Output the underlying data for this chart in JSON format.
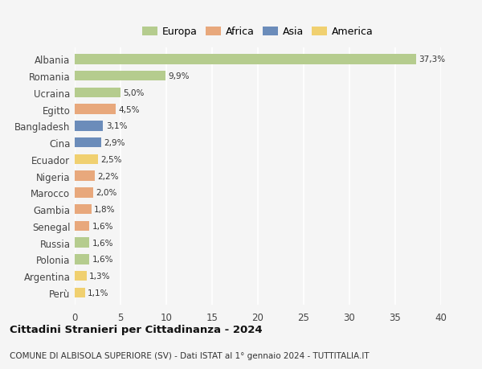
{
  "countries": [
    "Albania",
    "Romania",
    "Ucraina",
    "Egitto",
    "Bangladesh",
    "Cina",
    "Ecuador",
    "Nigeria",
    "Marocco",
    "Gambia",
    "Senegal",
    "Russia",
    "Polonia",
    "Argentina",
    "Perù"
  ],
  "values": [
    37.3,
    9.9,
    5.0,
    4.5,
    3.1,
    2.9,
    2.5,
    2.2,
    2.0,
    1.8,
    1.6,
    1.6,
    1.6,
    1.3,
    1.1
  ],
  "labels": [
    "37,3%",
    "9,9%",
    "5,0%",
    "4,5%",
    "3,1%",
    "2,9%",
    "2,5%",
    "2,2%",
    "2,0%",
    "1,8%",
    "1,6%",
    "1,6%",
    "1,6%",
    "1,3%",
    "1,1%"
  ],
  "continents": [
    "Europa",
    "Europa",
    "Europa",
    "Africa",
    "Asia",
    "Asia",
    "America",
    "Africa",
    "Africa",
    "Africa",
    "Africa",
    "Europa",
    "Europa",
    "America",
    "America"
  ],
  "continent_colors": {
    "Europa": "#b5cc8e",
    "Africa": "#e8a87c",
    "Asia": "#6b8cba",
    "America": "#f0d070"
  },
  "legend_order": [
    "Europa",
    "Africa",
    "Asia",
    "America"
  ],
  "xlim": [
    0,
    40
  ],
  "xticks": [
    0,
    5,
    10,
    15,
    20,
    25,
    30,
    35,
    40
  ],
  "title": "Cittadini Stranieri per Cittadinanza - 2024",
  "subtitle": "COMUNE DI ALBISOLA SUPERIORE (SV) - Dati ISTAT al 1° gennaio 2024 - TUTTITALIA.IT",
  "bg_color": "#f5f5f5",
  "grid_color": "#ffffff",
  "bar_height": 0.6
}
